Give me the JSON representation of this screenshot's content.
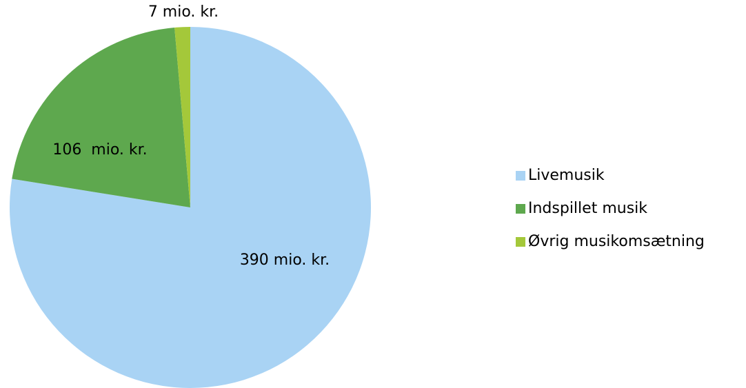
{
  "chart_data": {
    "type": "pie",
    "categories": [
      "Livemusik",
      "Indspillet musik",
      "Øvrig musikomsætning"
    ],
    "values": [
      390,
      106,
      7
    ],
    "value_labels": [
      "390 mio. kr.",
      "106  mio. kr.",
      "7 mio. kr."
    ],
    "colors": [
      "#a9d3f4",
      "#5ea84e",
      "#a4c83a"
    ],
    "legend": "right"
  }
}
